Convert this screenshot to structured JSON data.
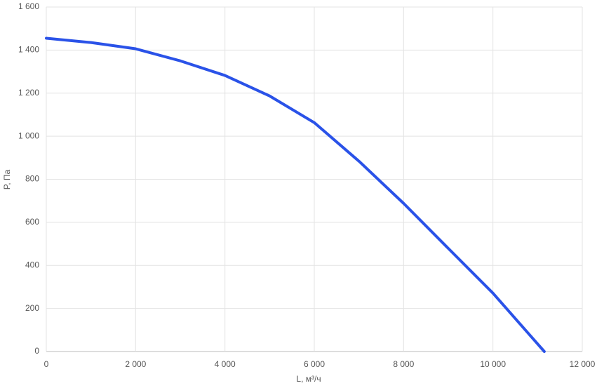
{
  "chart_data": {
    "type": "line",
    "x_label": "L, м³/ч",
    "y_label": "P, Па",
    "x": [
      0,
      1000,
      2000,
      3000,
      4000,
      5000,
      6000,
      7000,
      8000,
      9000,
      10000,
      11150
    ],
    "series": [
      {
        "color": "#2a52e8",
        "values": [
          1455,
          1435,
          1406,
          1350,
          1282,
          1187,
          1063,
          884,
          688,
          479,
          271,
          0
        ]
      }
    ],
    "xlim": [
      0,
      12000
    ],
    "xticks": [
      0,
      {
        "value": 2000,
        "label": "2 000"
      },
      {
        "value": 4000,
        "label": "4 000"
      },
      {
        "value": 6000,
        "label": "6 000"
      },
      {
        "value": 8000,
        "label": "8 000"
      },
      {
        "value": 10000,
        "label": "10 000"
      },
      {
        "value": 12000,
        "label": "12 000"
      }
    ],
    "ylim": [
      0,
      1600
    ],
    "yticks": [
      0,
      200,
      400,
      600,
      800,
      {
        "value": 1000,
        "label": "1 000"
      },
      {
        "value": 1200,
        "label": "1 200"
      },
      {
        "value": 1400,
        "label": "1 400"
      },
      {
        "value": 1600,
        "label": "1 600"
      }
    ],
    "grid": true
  }
}
